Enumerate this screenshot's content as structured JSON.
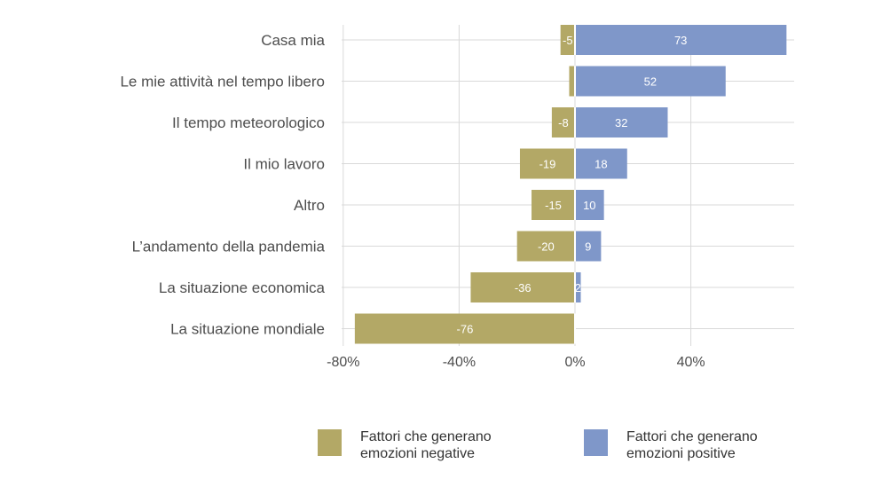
{
  "chart_data": {
    "type": "bar",
    "orientation": "horizontal",
    "stacked": "diverging",
    "categories": [
      "Casa mia",
      "Le mie attività nel tempo libero",
      "Il tempo meteorologico",
      "Il mio lavoro",
      "Altro",
      "L’andamento della pandemia",
      "La situazione economica",
      "La situazione mondiale"
    ],
    "series": [
      {
        "name": "Fattori che generano emozioni negative",
        "legend_lines": [
          "Fattori che generano",
          "emozioni negative"
        ],
        "color": "#b3a866",
        "values": [
          -5,
          -2,
          -8,
          -19,
          -15,
          -20,
          -36,
          -76
        ],
        "labels": [
          "-5",
          "",
          "-8",
          "-19",
          "-15",
          "-20",
          "-36",
          "-76"
        ]
      },
      {
        "name": "Fattori che generano emozioni positive",
        "legend_lines": [
          "Fattori che generano",
          "emozioni positive"
        ],
        "color": "#7f97c9",
        "values": [
          73,
          52,
          32,
          18,
          10,
          9,
          2,
          0
        ],
        "labels": [
          "73",
          "52",
          "32",
          "18",
          "10",
          "9",
          "2",
          ""
        ]
      }
    ],
    "xlim": [
      -80,
      75
    ],
    "xticks": [
      -80,
      -40,
      0,
      40
    ],
    "xtick_labels": [
      "-80%",
      "-40%",
      "0%",
      "40%"
    ],
    "grid": true,
    "legend_position": "bottom",
    "xlabel": "",
    "ylabel": ""
  }
}
